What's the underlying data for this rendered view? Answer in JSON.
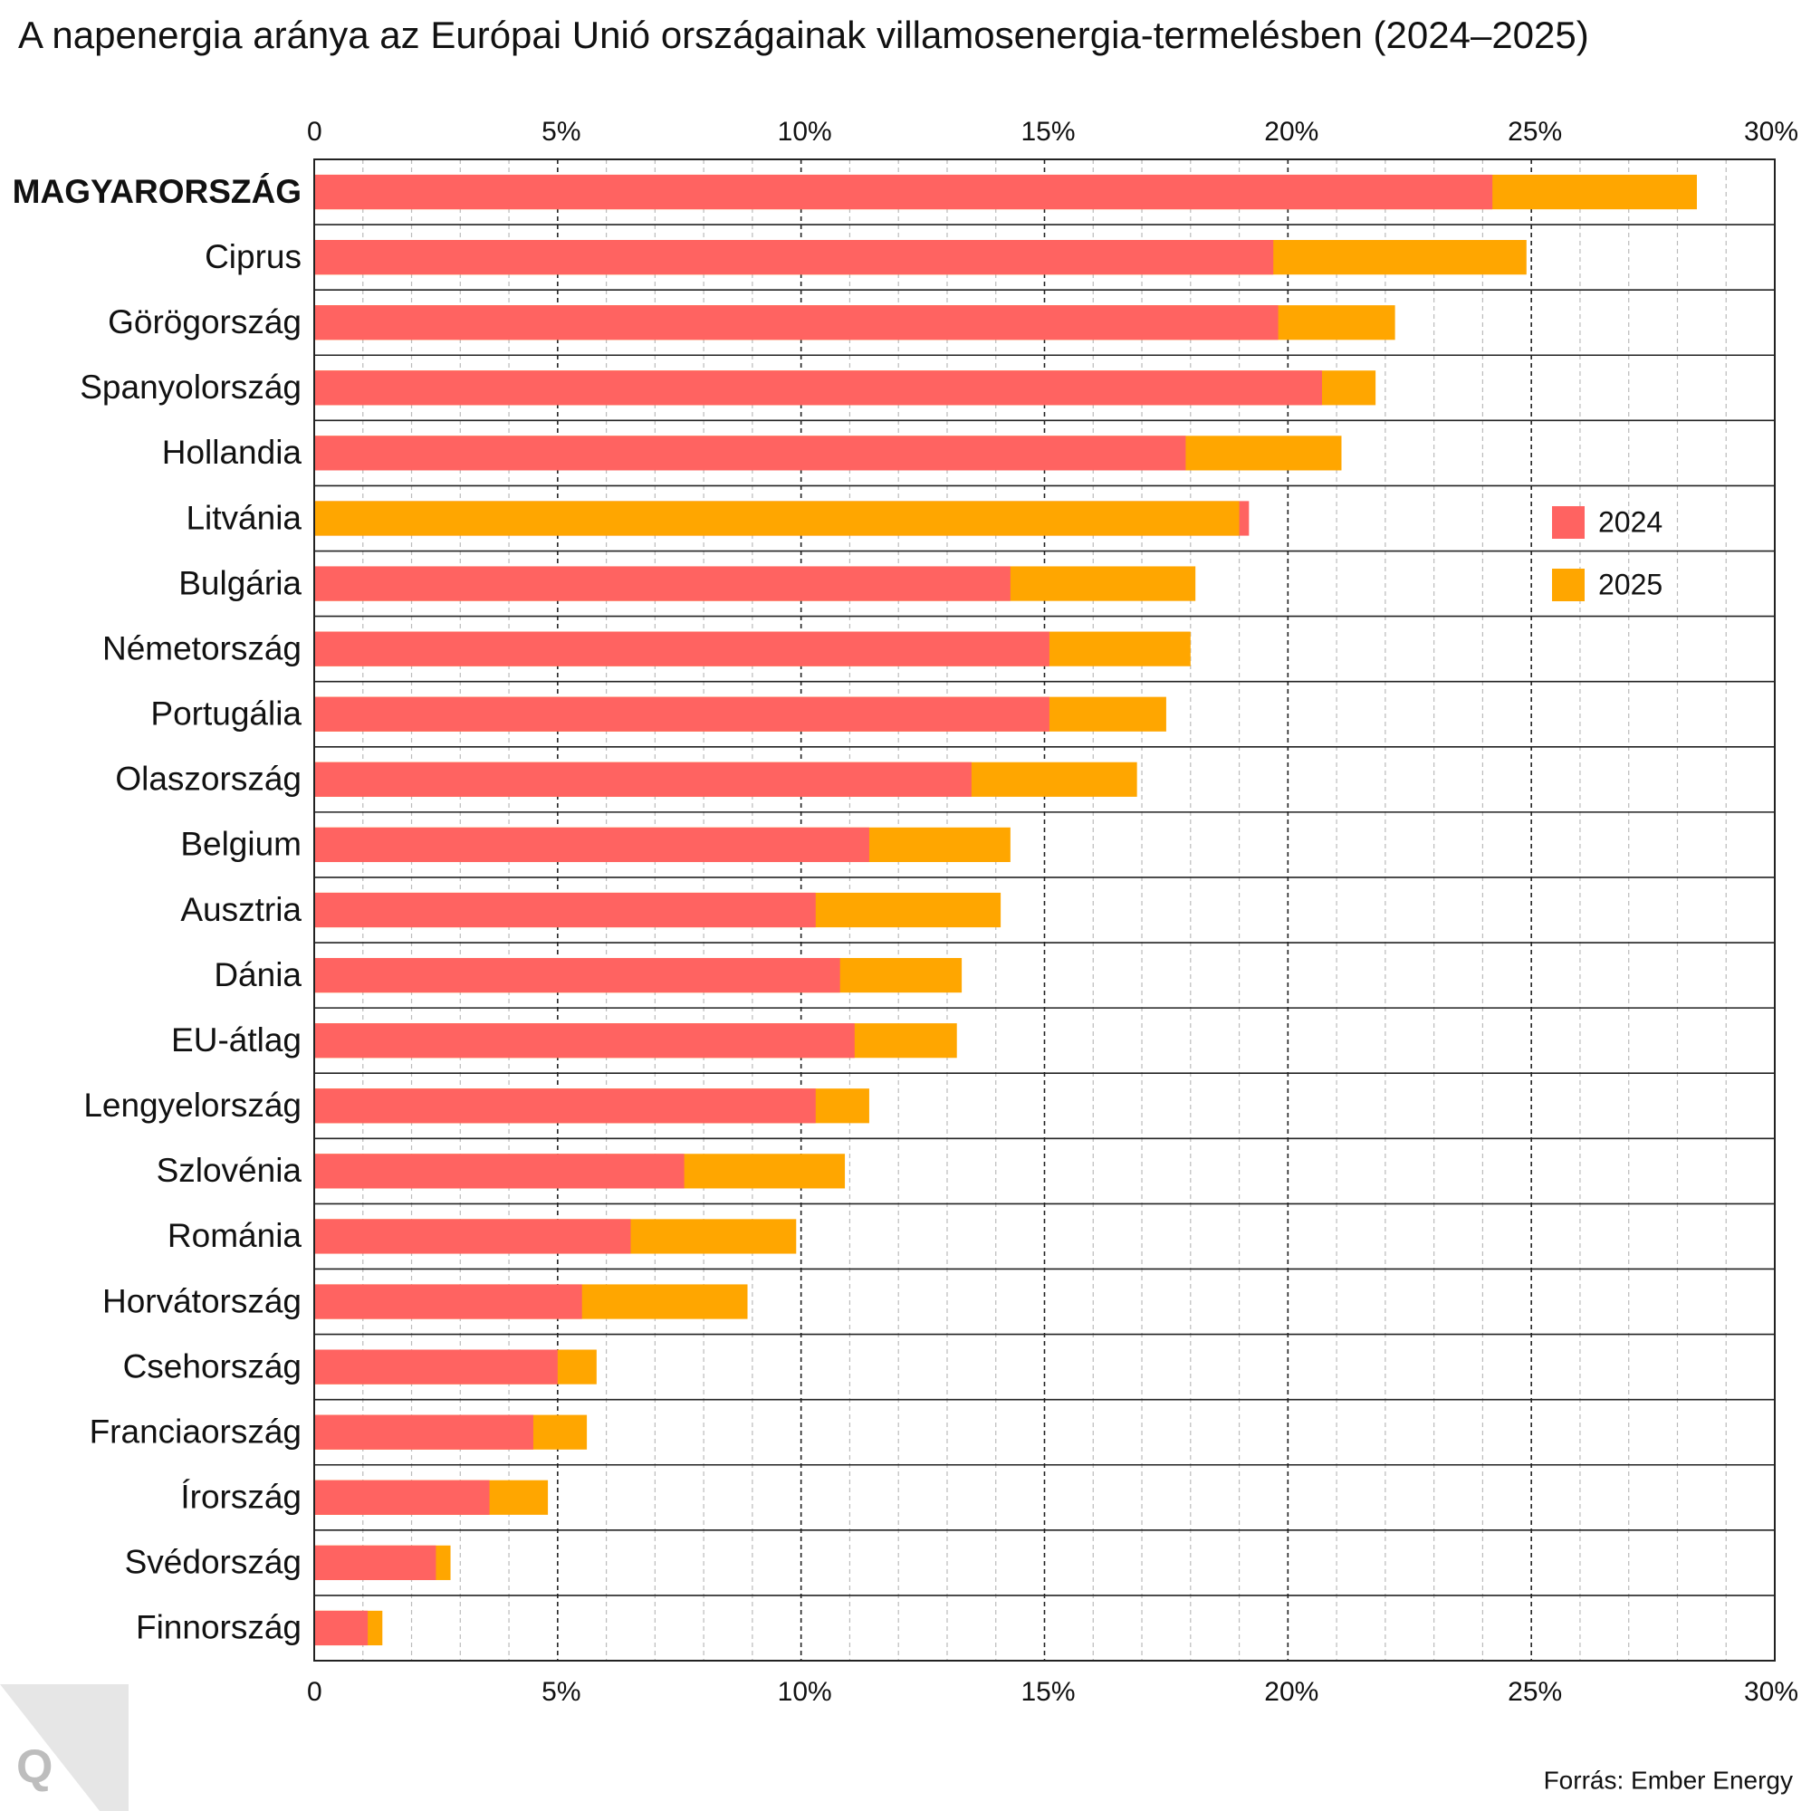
{
  "chart_data": {
    "type": "overlap_bar",
    "title": "A napenergia aránya az Európai Unió országainak villamosenergia-termelésben (2024–2025)",
    "categories": [
      "MAGYARORSZÁG",
      "Ciprus",
      "Görögország",
      "Spanyolország",
      "Hollandia",
      "Litvánia",
      "Bulgária",
      "Németország",
      "Portugália",
      "Olaszország",
      "Belgium",
      "Ausztria",
      "Dánia",
      "EU-átlag",
      "Lengyelország",
      "Szlovénia",
      "Románia",
      "Horvátország",
      "Csehország",
      "Franciaország",
      "Írország",
      "Svédország",
      "Finnország"
    ],
    "series": [
      {
        "name": "2024",
        "color": "#ff6361",
        "values": [
          24.2,
          19.7,
          19.8,
          20.7,
          17.9,
          19.2,
          14.3,
          15.1,
          15.1,
          13.5,
          11.4,
          10.3,
          10.8,
          11.1,
          10.3,
          7.6,
          6.5,
          5.5,
          5.0,
          4.5,
          3.6,
          2.5,
          1.1
        ]
      },
      {
        "name": "2025",
        "color": "#ffa600",
        "values": [
          28.4,
          24.9,
          22.2,
          21.8,
          21.1,
          19.0,
          18.1,
          18.0,
          17.5,
          16.9,
          14.3,
          14.1,
          13.3,
          13.2,
          11.4,
          10.9,
          9.9,
          8.9,
          5.8,
          5.6,
          4.8,
          2.8,
          1.4
        ]
      }
    ],
    "xlim": [
      0,
      30
    ],
    "xticks": [
      0,
      {
        "value": 5,
        "label": "5%"
      },
      {
        "value": 10,
        "label": "10%"
      },
      {
        "value": 15,
        "label": "15%"
      },
      {
        "value": 20,
        "label": "20%"
      },
      {
        "value": 25,
        "label": "25%"
      },
      {
        "value": 30,
        "label": "30%"
      }
    ],
    "xminorticks": [
      1,
      2,
      3,
      4,
      6,
      7,
      8,
      9,
      11,
      12,
      13,
      14,
      16,
      17,
      18,
      19,
      21,
      22,
      23,
      24,
      26,
      27,
      28,
      29
    ],
    "grid": true,
    "highlight": 0,
    "legend_position": "right",
    "source": "Forrás: Ember Energy"
  },
  "logo": "Q"
}
